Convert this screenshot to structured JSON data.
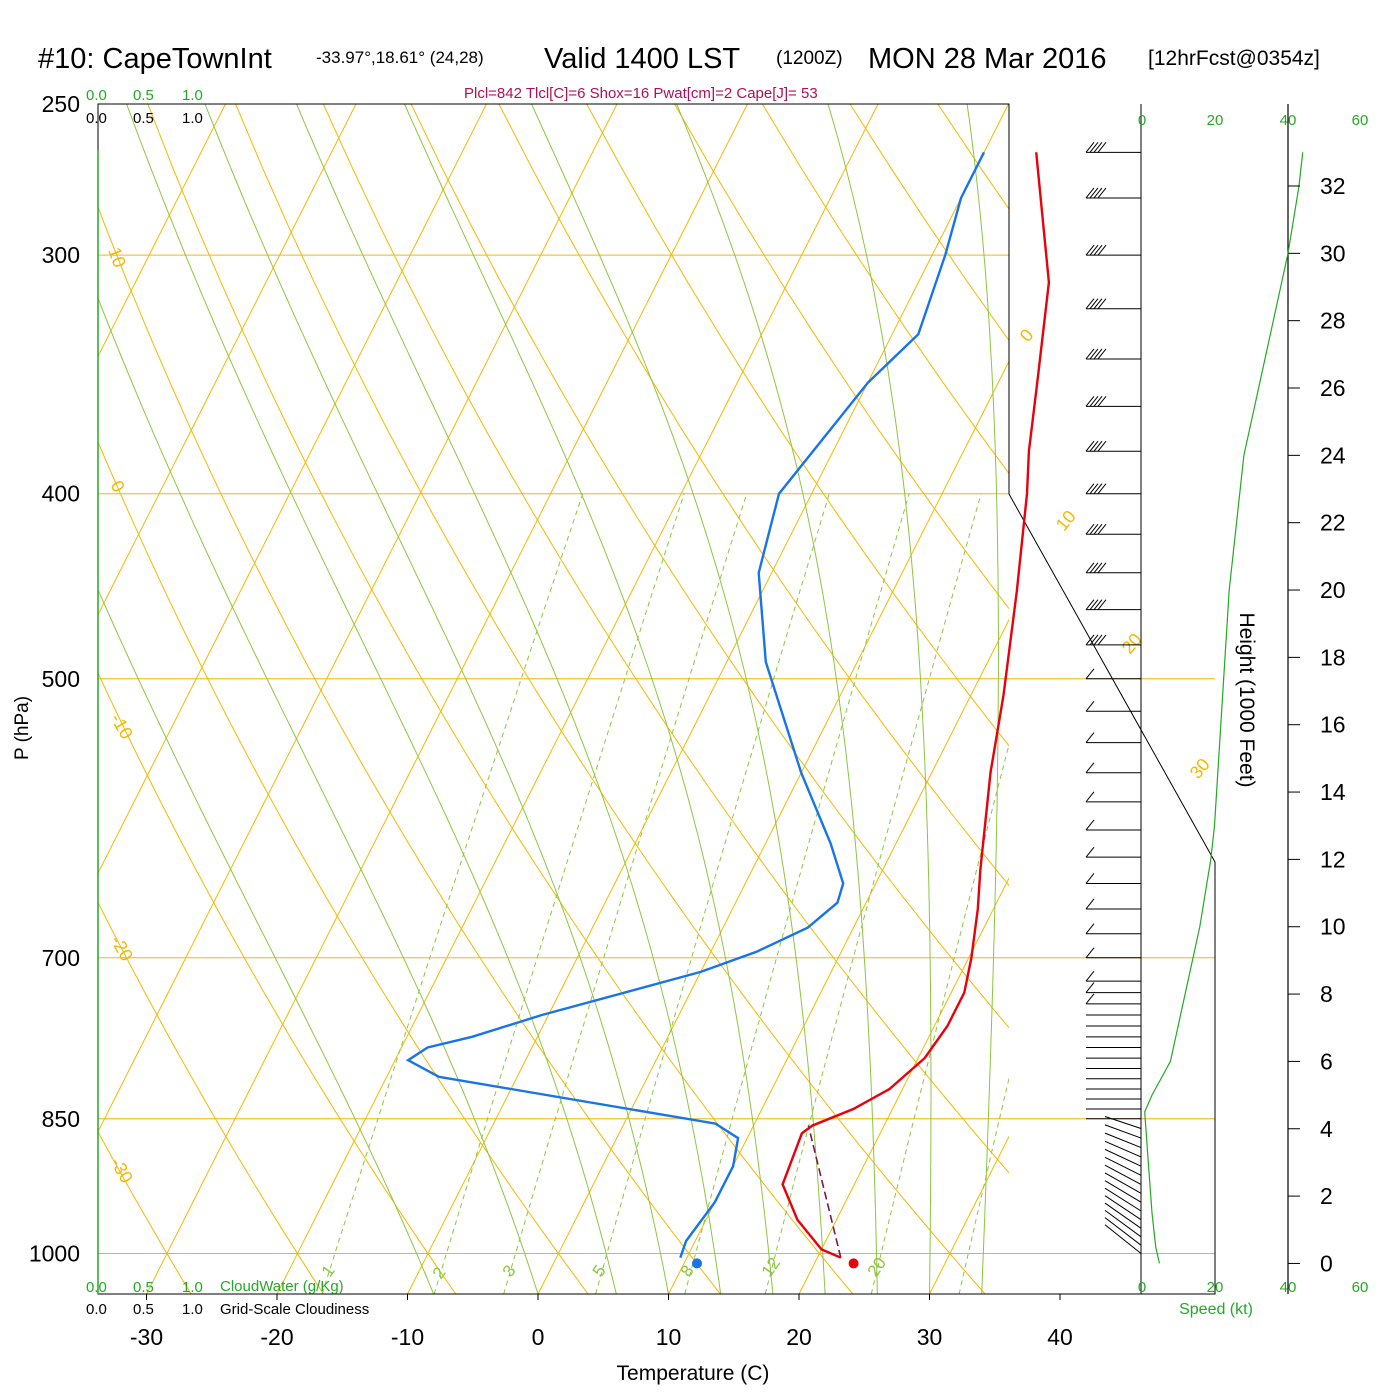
{
  "colors": {
    "background": "#ffffff",
    "isobar": "#f5b800",
    "isotherm": "#f5b800",
    "dry_adiabat": "#f5b800",
    "moist_adiabat": "#8cc63f",
    "mixing_ratio": "#8cc63f",
    "temperature": "#e8000b",
    "dewpoint": "#1874e8",
    "parcel": "#7a1a4a",
    "index_text": "#b0105a",
    "green_text": "#22aa22",
    "axis": "#000000"
  },
  "header": {
    "station": "#10: CapeTownInt",
    "coords": "-33.97°,18.61° (24,28)",
    "valid": "Valid 1400 LST",
    "zulu": "(1200Z)",
    "date": "MON 28 Mar 2016",
    "forecast": "[12hrFcst@0354z]"
  },
  "indices": "Plcl=842 Tlcl[C]=6 Shox=16 Pwat[cm]=2 Cape[J]= 53",
  "cloud_scale": {
    "top_green": [
      "0.0",
      "0.5",
      "1.0"
    ],
    "top_black": [
      "0.0",
      "0.5",
      "1.0"
    ],
    "bottom_green": [
      "0.0",
      "0.5",
      "1.0"
    ],
    "bottom_black": [
      "0.0",
      "0.5",
      "1.0"
    ],
    "cloudwater_label": "CloudWater (g/Kg)",
    "cloudiness_label": "Grid-Scale Cloudiness"
  },
  "speed_axis": {
    "ticks": [
      "0",
      "20",
      "40",
      "60"
    ],
    "label": "Speed (kt)"
  },
  "height_axis": {
    "label": "Height (1000 Feet)",
    "ticks": [
      "0",
      "2",
      "4",
      "6",
      "8",
      "10",
      "12",
      "14",
      "16",
      "18",
      "20",
      "22",
      "24",
      "26",
      "28",
      "30",
      "32"
    ]
  },
  "chart_data": {
    "type": "line",
    "subtype": "skew-t log-p sounding",
    "xlabel": "Temperature (C)",
    "ylabel": "P (hPa)",
    "x_ticks": [
      -30,
      -20,
      -10,
      0,
      10,
      20,
      30,
      40
    ],
    "y_ticks": [
      250,
      300,
      400,
      500,
      700,
      850,
      1000
    ],
    "ylim": [
      1050,
      250
    ],
    "isotherm_labels": [
      "10",
      "0",
      "-10",
      "-20",
      "-30",
      "0",
      "10",
      "20",
      "30"
    ],
    "mixing_ratio_labels": [
      "1",
      "2",
      "3",
      "5",
      "8",
      "12",
      "20"
    ],
    "series": [
      {
        "name": "Temperature",
        "points": [
          [
            21.8,
            1005
          ],
          [
            20,
            995
          ],
          [
            17,
            960
          ],
          [
            14.5,
            920
          ],
          [
            14.0,
            865
          ],
          [
            14.5,
            857
          ],
          [
            17,
            840
          ],
          [
            19,
            820
          ],
          [
            20.5,
            790
          ],
          [
            21,
            760
          ],
          [
            21,
            730
          ],
          [
            20.2,
            700
          ],
          [
            18.8,
            660
          ],
          [
            17.5,
            630
          ],
          [
            14.5,
            560
          ],
          [
            12.5,
            510
          ],
          [
            9.5,
            450
          ],
          [
            6.5,
            400
          ],
          [
            5,
            380
          ],
          [
            3,
            350
          ],
          [
            0,
            310
          ],
          [
            -6,
            265
          ]
        ]
      },
      {
        "name": "Dewpoint",
        "points": [
          [
            9.5,
            1005
          ],
          [
            9.3,
            985
          ],
          [
            10,
            940
          ],
          [
            10,
            900
          ],
          [
            9.3,
            870
          ],
          [
            7,
            855
          ],
          [
            -10,
            820
          ],
          [
            -16,
            808
          ],
          [
            -19,
            792
          ],
          [
            -18,
            780
          ],
          [
            -15,
            770
          ],
          [
            -10.5,
            750
          ],
          [
            0,
            712
          ],
          [
            3.5,
            695
          ],
          [
            6.5,
            675
          ],
          [
            7.8,
            655
          ],
          [
            7.5,
            640
          ],
          [
            5,
            610
          ],
          [
            0,
            560
          ],
          [
            -7,
            490
          ],
          [
            -11,
            440
          ],
          [
            -12.5,
            400
          ],
          [
            -10,
            350
          ],
          [
            -8,
            330
          ],
          [
            -9,
            300
          ],
          [
            -10,
            280
          ],
          [
            -10,
            265
          ]
        ]
      },
      {
        "name": "Parcel",
        "points": [
          [
            21.8,
            1005
          ],
          [
            14.2,
            857
          ]
        ]
      }
    ],
    "surface": {
      "temperature": 23,
      "dewpoint": 11
    },
    "lcl_hpa": 842,
    "wind_barb_levels_hpa": [
      1000,
      990,
      980,
      970,
      960,
      950,
      940,
      930,
      920,
      910,
      900,
      890,
      880,
      870,
      860,
      850,
      840,
      830,
      820,
      810,
      800,
      790,
      780,
      770,
      760,
      750,
      740,
      730,
      720,
      700,
      680,
      660,
      640,
      620,
      600,
      580,
      560,
      540,
      520,
      500,
      480,
      460,
      440,
      420,
      400,
      380,
      360,
      340,
      320,
      300,
      280,
      265
    ],
    "wind_speed_profile_kt": [
      [
        0,
        5
      ],
      [
        0.5,
        4
      ],
      [
        1.5,
        3
      ],
      [
        3,
        2
      ],
      [
        4.5,
        1
      ],
      [
        5,
        3
      ],
      [
        6,
        8
      ],
      [
        8,
        12
      ],
      [
        10,
        16
      ],
      [
        12,
        19
      ],
      [
        13,
        20
      ],
      [
        20,
        24
      ],
      [
        24,
        28
      ],
      [
        27,
        34
      ],
      [
        30,
        40
      ],
      [
        32,
        43
      ],
      [
        33,
        44
      ]
    ],
    "height_vs_pressure_kft": [
      [
        0,
        1012
      ],
      [
        33,
        265
      ]
    ]
  }
}
